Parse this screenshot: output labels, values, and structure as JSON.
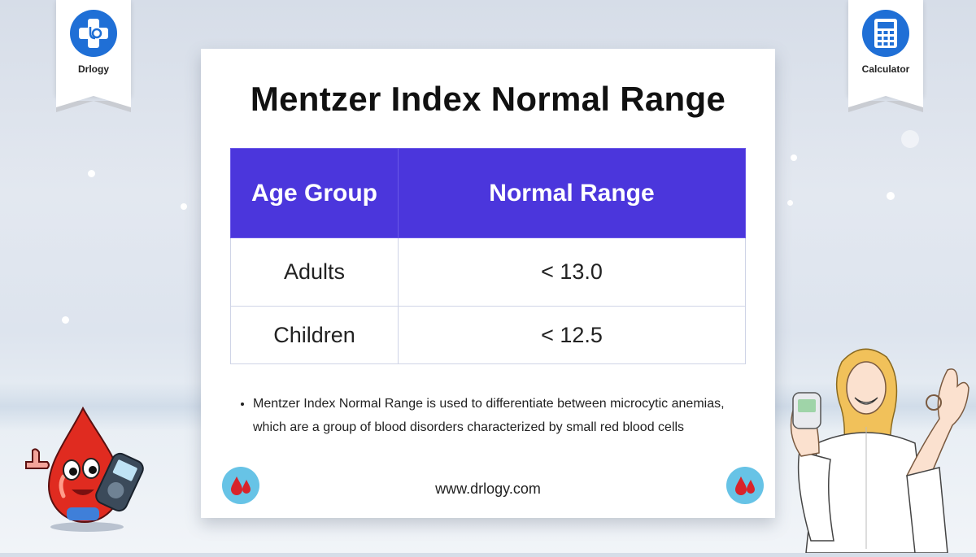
{
  "badges": {
    "left_label": "Drlogy",
    "left_icon": "medical-cross-stethoscope-icon",
    "right_label": "Calculator",
    "right_icon": "calculator-icon"
  },
  "title": "Mentzer Index Normal Range",
  "table": {
    "headers": [
      "Age Group",
      "Normal Range"
    ],
    "rows": [
      [
        "Adults",
        "< 13.0"
      ],
      [
        "Children",
        "< 12.5"
      ]
    ]
  },
  "note": "Mentzer Index Normal Range is used to differentiate between microcytic anemias, which are a group of blood disorders characterized by small red blood cells",
  "footer_url": "www.drlogy.com",
  "colors": {
    "header_bg": "#4b36dc",
    "badge_blue": "#1f6fd6",
    "drop_red": "#d8232a",
    "drop_badge_bg": "#67c3e6"
  }
}
